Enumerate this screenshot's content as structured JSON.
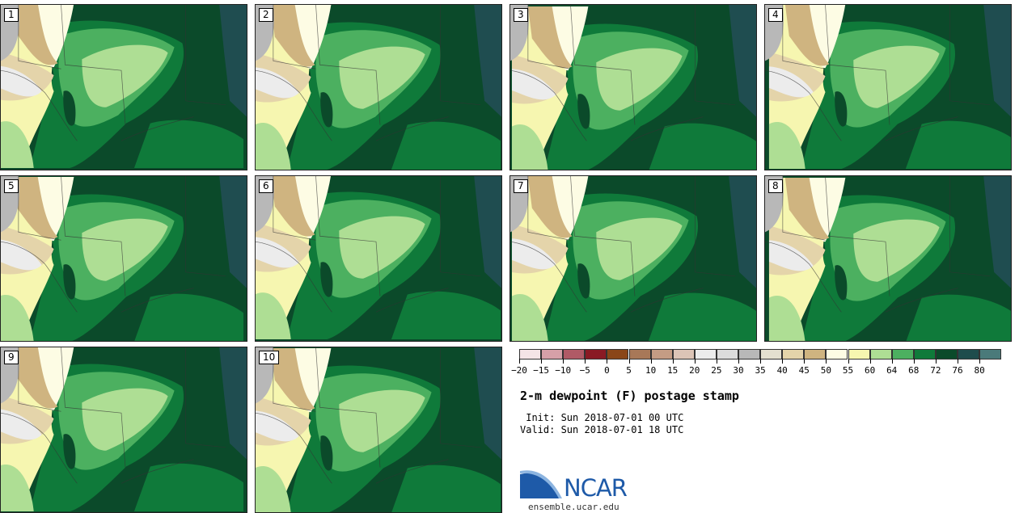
{
  "panels": [
    {
      "label": "1"
    },
    {
      "label": "2"
    },
    {
      "label": "3"
    },
    {
      "label": "4"
    },
    {
      "label": "5"
    },
    {
      "label": "6"
    },
    {
      "label": "7"
    },
    {
      "label": "8"
    },
    {
      "label": "9"
    },
    {
      "label": "10"
    }
  ],
  "legend": {
    "title": "2-m dewpoint (F) postage stamp",
    "init": " Init: Sun 2018-07-01 00 UTC",
    "valid": "Valid: Sun 2018-07-01 18 UTC",
    "tick_labels": [
      "−20",
      "−15",
      "−10",
      "−5",
      "0",
      "5",
      "10",
      "15",
      "20",
      "25",
      "30",
      "35",
      "40",
      "45",
      "50",
      "55",
      "60",
      "64",
      "68",
      "72",
      "76",
      "80"
    ],
    "colors": [
      "#f4e4e6",
      "#d6a0a8",
      "#b05a66",
      "#8a1a24",
      "#8a4618",
      "#a87858",
      "#c49c84",
      "#dcc4b6",
      "#ececec",
      "#dcdcdc",
      "#b8b8b8",
      "#e4e0d0",
      "#e4d4aa",
      "#cfb480",
      "#fdfce4",
      "#f6f6b0",
      "#aede94",
      "#4cb060",
      "#0f7a3a",
      "#0b4a2a",
      "#1e4c4c",
      "#4a7a7a"
    ]
  },
  "logo": {
    "text": "NCAR",
    "url": "ensemble.ucar.edu"
  }
}
